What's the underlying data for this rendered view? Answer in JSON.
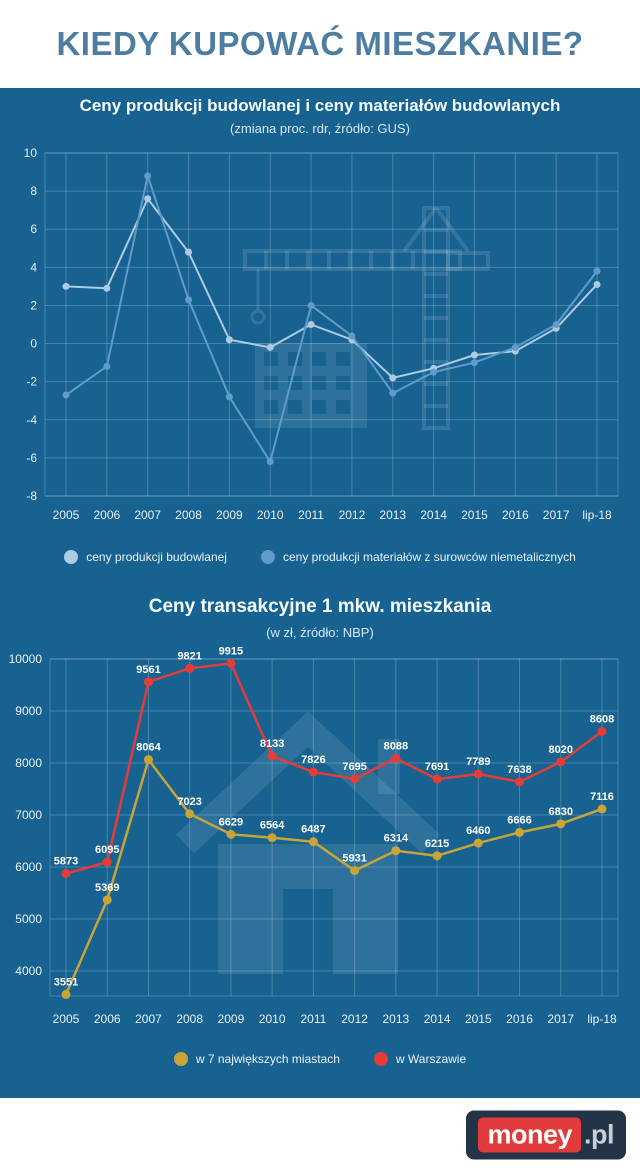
{
  "header": {
    "title": "KIEDY KUPOWAĆ MIESZKANIE?"
  },
  "palette": {
    "background": "#176291",
    "header_title": "#4d7da0",
    "grid": "rgba(210,233,246,0.25)",
    "tick_text": "#e8f2f9",
    "logo_navy": "#243447",
    "logo_red": "#e23b3b"
  },
  "chart_data": [
    {
      "type": "line",
      "title": "Ceny produkcji budowlanej i ceny materiałów budowlanych",
      "subtitle": "(zmiana proc. rdr, źródło: GUS)",
      "categories": [
        "2005",
        "2006",
        "2007",
        "2008",
        "2009",
        "2010",
        "2011",
        "2012",
        "2013",
        "2014",
        "2015",
        "2016",
        "2017",
        "lip-18"
      ],
      "ylim": [
        -8,
        10
      ],
      "yticks": [
        10,
        8,
        6,
        4,
        2,
        0,
        -2,
        -4,
        -6,
        -8
      ],
      "grid": true,
      "legend_position": "bottom",
      "show_point_labels": false,
      "series": [
        {
          "name": "ceny produkcji budowlanej",
          "color": "#adcbe3",
          "values": [
            3.0,
            2.9,
            7.6,
            4.8,
            0.2,
            -0.2,
            1.0,
            0.2,
            -1.8,
            -1.3,
            -0.6,
            -0.4,
            0.8,
            3.1
          ]
        },
        {
          "name": "ceny produkcji materiałów z surowców niemetalicznych",
          "color": "#5f9cc9",
          "values": [
            -2.7,
            -1.2,
            8.8,
            2.3,
            -2.8,
            -6.2,
            2.0,
            0.4,
            -2.6,
            -1.5,
            -1.0,
            -0.2,
            1.0,
            3.8
          ]
        }
      ]
    },
    {
      "type": "line",
      "title": "Ceny transakcyjne 1 mkw. mieszkania",
      "subtitle": "(w zł, źródło: NBP)",
      "categories": [
        "2005",
        "2006",
        "2007",
        "2008",
        "2009",
        "2010",
        "2011",
        "2012",
        "2013",
        "2014",
        "2015",
        "2016",
        "2017",
        "lip-18"
      ],
      "ylim": [
        3520,
        10000
      ],
      "yticks": [
        10000,
        9000,
        8000,
        7000,
        6000,
        5000,
        4000
      ],
      "grid": true,
      "legend_position": "bottom",
      "show_point_labels": true,
      "series": [
        {
          "name": "w 7 największych miastach",
          "color": "#c9a437",
          "values": [
            3551,
            5369,
            8064,
            7023,
            6629,
            6564,
            6487,
            5931,
            6314,
            6215,
            6460,
            6666,
            6830,
            7116
          ]
        },
        {
          "name": "w Warszawie",
          "color": "#e63c38",
          "values": [
            5873,
            6095,
            9561,
            9821,
            9915,
            8133,
            7826,
            7695,
            8088,
            7691,
            7789,
            7638,
            8020,
            8608
          ]
        }
      ]
    }
  ],
  "footer": {
    "logo_money": "money",
    "logo_pl": ".pl"
  }
}
